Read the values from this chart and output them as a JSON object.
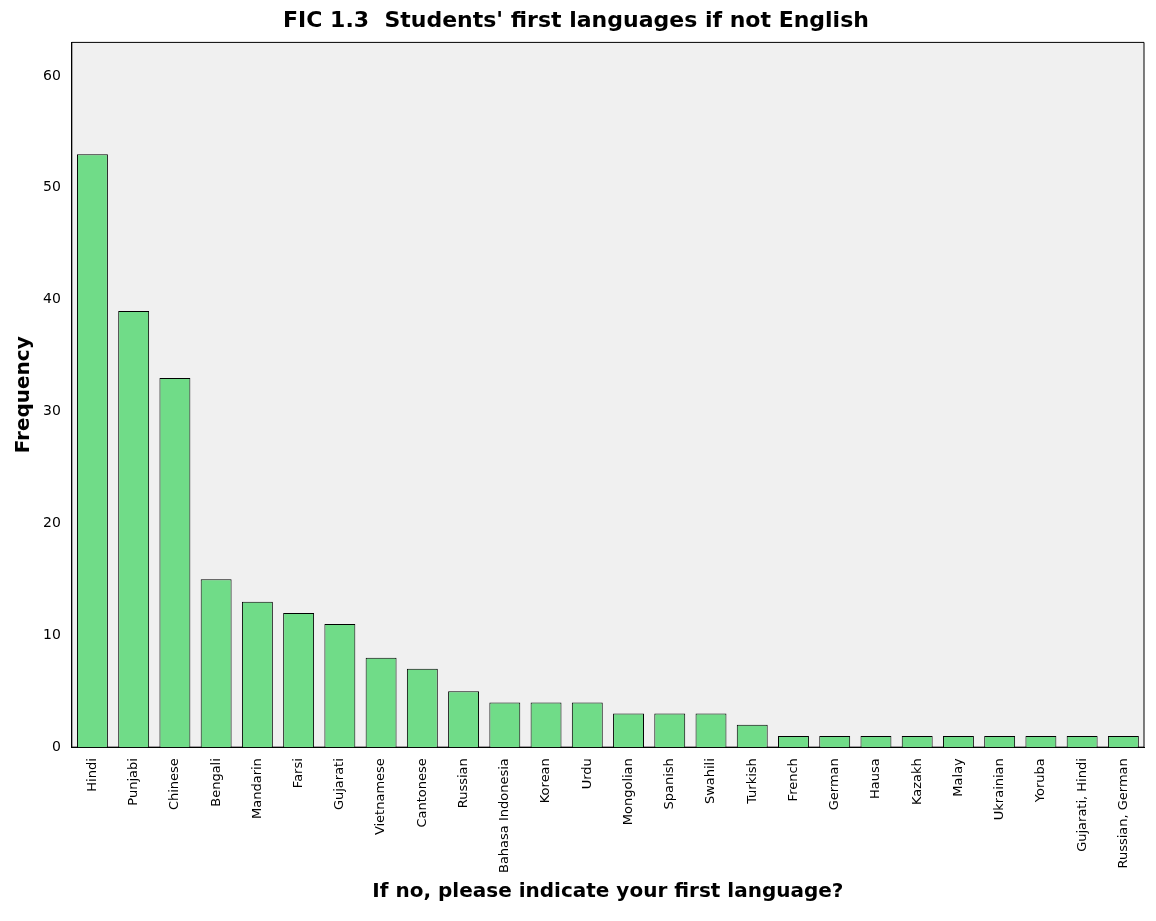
{
  "chart_data": {
    "type": "bar",
    "title": "FIC 1.3  Students' first languages if not English",
    "xlabel": "If no, please indicate your first language?",
    "ylabel": "Frequency",
    "categories": [
      "Hindi",
      "Punjabi",
      "Chinese",
      "Bengali",
      "Mandarin",
      "Farsi",
      "Gujarati",
      "Vietnamese",
      "Cantonese",
      "Russian",
      "Bahasa Indonesia",
      "Korean",
      "Urdu",
      "Mongolian",
      "Spanish",
      "Swahili",
      "Turkish",
      "French",
      "German",
      "Hausa",
      "Kazakh",
      "Malay",
      "Ukrainian",
      "Yoruba",
      "Gujarati, Hindi",
      "Russian, German"
    ],
    "values": [
      53,
      39,
      33,
      15,
      13,
      12,
      11,
      8,
      7,
      5,
      4,
      4,
      4,
      3,
      3,
      3,
      2,
      1,
      1,
      1,
      1,
      1,
      1,
      1,
      1,
      1
    ],
    "color": "#70dc88",
    "ylim": [
      0,
      63
    ],
    "yticks": [
      0,
      10,
      20,
      30,
      40,
      50,
      60
    ],
    "grid": false,
    "legend": false
  }
}
